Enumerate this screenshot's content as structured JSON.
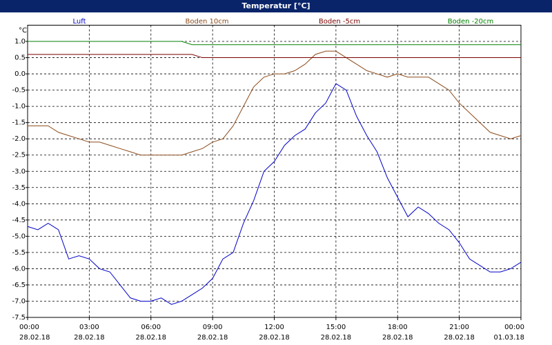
{
  "chart_data": {
    "type": "line",
    "title": "Temperatur [°C]",
    "y_unit": "°C",
    "x": [
      0,
      0.5,
      1,
      1.5,
      2,
      2.5,
      3,
      3.5,
      4,
      4.5,
      5,
      5.5,
      6,
      6.5,
      7,
      7.5,
      8,
      8.5,
      9,
      9.5,
      10,
      10.5,
      11,
      11.5,
      12,
      12.5,
      13,
      13.5,
      14,
      14.5,
      15,
      15.5,
      16,
      16.5,
      17,
      17.5,
      18,
      18.5,
      19,
      19.5,
      20,
      20.5,
      21,
      21.5,
      22,
      22.5,
      23,
      23.5,
      24
    ],
    "series": [
      {
        "name": "Luft",
        "color": "#0000c8",
        "values": [
          -4.7,
          -4.8,
          -4.6,
          -4.8,
          -5.7,
          -5.6,
          -5.7,
          -6.0,
          -6.1,
          -6.5,
          -6.9,
          -7.0,
          -7.0,
          -6.9,
          -7.1,
          -7.0,
          -6.8,
          -6.6,
          -6.3,
          -5.7,
          -5.5,
          -4.6,
          -3.9,
          -3.0,
          -2.7,
          -2.2,
          -1.9,
          -1.7,
          -1.2,
          -0.9,
          -0.3,
          -0.5,
          -1.3,
          -1.9,
          -2.4,
          -3.2,
          -3.8,
          -4.4,
          -4.1,
          -4.3,
          -4.6,
          -4.8,
          -5.2,
          -5.7,
          -5.9,
          -6.1,
          -6.1,
          -6.0,
          -5.8
        ]
      },
      {
        "name": "Boden 10cm",
        "color": "#8b4a1a",
        "values": [
          -1.6,
          -1.6,
          -1.6,
          -1.8,
          -1.9,
          -2.0,
          -2.1,
          -2.1,
          -2.2,
          -2.3,
          -2.4,
          -2.5,
          -2.5,
          -2.5,
          -2.5,
          -2.5,
          -2.4,
          -2.3,
          -2.1,
          -2.0,
          -1.6,
          -1.0,
          -0.4,
          -0.1,
          0.0,
          0.0,
          0.1,
          0.3,
          0.6,
          0.7,
          0.7,
          0.5,
          0.3,
          0.1,
          0.0,
          -0.1,
          0.0,
          -0.1,
          -0.1,
          -0.1,
          -0.3,
          -0.5,
          -0.9,
          -1.2,
          -1.5,
          -1.8,
          -1.9,
          -2.0,
          -1.9
        ]
      },
      {
        "name": "Boden -5cm",
        "color": "#7a0000",
        "values": [
          0.6,
          0.6,
          0.6,
          0.6,
          0.6,
          0.6,
          0.6,
          0.6,
          0.6,
          0.6,
          0.6,
          0.6,
          0.6,
          0.6,
          0.6,
          0.6,
          0.6,
          0.5,
          0.5,
          0.5,
          0.5,
          0.5,
          0.5,
          0.5,
          0.5,
          0.5,
          0.5,
          0.5,
          0.5,
          0.5,
          0.5,
          0.5,
          0.5,
          0.5,
          0.5,
          0.5,
          0.5,
          0.5,
          0.5,
          0.5,
          0.5,
          0.5,
          0.5,
          0.5,
          0.5,
          0.5,
          0.5,
          0.5,
          0.5
        ]
      },
      {
        "name": "Boden -20cm",
        "color": "#008000",
        "values": [
          1.0,
          1.0,
          1.0,
          1.0,
          1.0,
          1.0,
          1.0,
          1.0,
          1.0,
          1.0,
          1.0,
          1.0,
          1.0,
          1.0,
          1.0,
          1.0,
          0.9,
          0.9,
          0.9,
          0.9,
          0.9,
          0.9,
          0.9,
          0.9,
          0.9,
          0.9,
          0.9,
          0.9,
          0.9,
          0.9,
          0.9,
          0.9,
          0.9,
          0.9,
          0.9,
          0.9,
          0.9,
          0.9,
          0.9,
          0.9,
          0.9,
          0.9,
          0.9,
          0.9,
          0.9,
          0.9,
          0.9,
          0.9,
          0.9
        ]
      }
    ],
    "xlim": [
      0,
      24
    ],
    "ylim": [
      -7.5,
      1.5
    ],
    "xticks": [
      {
        "value": 0,
        "label": "00:00",
        "date": "28.02.18"
      },
      {
        "value": 3,
        "label": "03:00",
        "date": "28.02.18"
      },
      {
        "value": 6,
        "label": "06:00",
        "date": "28.02.18"
      },
      {
        "value": 9,
        "label": "09:00",
        "date": "28.02.18"
      },
      {
        "value": 12,
        "label": "12:00",
        "date": "28.02.18"
      },
      {
        "value": 15,
        "label": "15:00",
        "date": "28.02.18"
      },
      {
        "value": 18,
        "label": "18:00",
        "date": "28.02.18"
      },
      {
        "value": 21,
        "label": "21:00",
        "date": "28.02.18"
      },
      {
        "value": 24,
        "label": "00:00",
        "date": "01.03.18"
      }
    ],
    "yticks": [
      {
        "value": 1,
        "label": "1.0"
      },
      {
        "value": 0.5,
        "label": "0.5"
      },
      {
        "value": 0,
        "label": "0.0"
      },
      {
        "value": -0.5,
        "label": "-0.5"
      },
      {
        "value": -1,
        "label": "-1.0"
      },
      {
        "value": -1.5,
        "label": "-1.5"
      },
      {
        "value": -2,
        "label": "-2.0"
      },
      {
        "value": -2.5,
        "label": "-2.5"
      },
      {
        "value": -3,
        "label": "-3.0"
      },
      {
        "value": -3.5,
        "label": "-3.5"
      },
      {
        "value": -4,
        "label": "-4.0"
      },
      {
        "value": -4.5,
        "label": "-4.5"
      },
      {
        "value": -5,
        "label": "-5.0"
      },
      {
        "value": -5.5,
        "label": "-5.5"
      },
      {
        "value": -6,
        "label": "-6.0"
      },
      {
        "value": -6.5,
        "label": "-6.5"
      },
      {
        "value": -7,
        "label": "-7.0"
      },
      {
        "value": -7.5,
        "label": "-7.5"
      }
    ],
    "grid": true
  }
}
